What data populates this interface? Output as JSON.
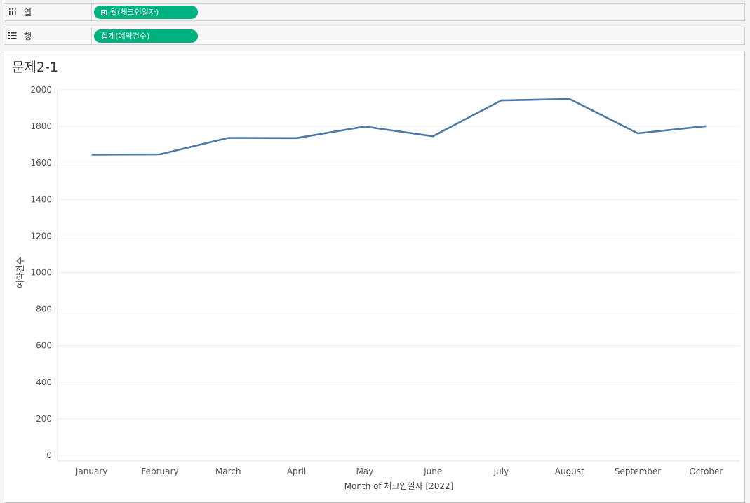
{
  "shelves": {
    "columns": {
      "label": "열",
      "icon": "columns-icon",
      "pill": "월(체크인일자)"
    },
    "rows": {
      "label": "행",
      "icon": "rows-list-icon",
      "pill": "집계(예약건수)"
    }
  },
  "colors": {
    "pill": "#00b180",
    "line": "#4e79a7"
  },
  "chart_data": {
    "type": "line",
    "title": "문제2-1",
    "xlabel": "Month of 체크인일자 [2022]",
    "ylabel": "예약건수",
    "categories": [
      "January",
      "February",
      "March",
      "April",
      "May",
      "June",
      "July",
      "August",
      "September",
      "October"
    ],
    "values": [
      1645,
      1647,
      1737,
      1736,
      1799,
      1746,
      1942,
      1950,
      1762,
      1801
    ],
    "ylim": [
      0,
      2000
    ],
    "yticks": [
      "0",
      "200",
      "400",
      "600",
      "800",
      "1000",
      "1200",
      "1400",
      "1600",
      "1800",
      "2000"
    ],
    "grid": true
  }
}
